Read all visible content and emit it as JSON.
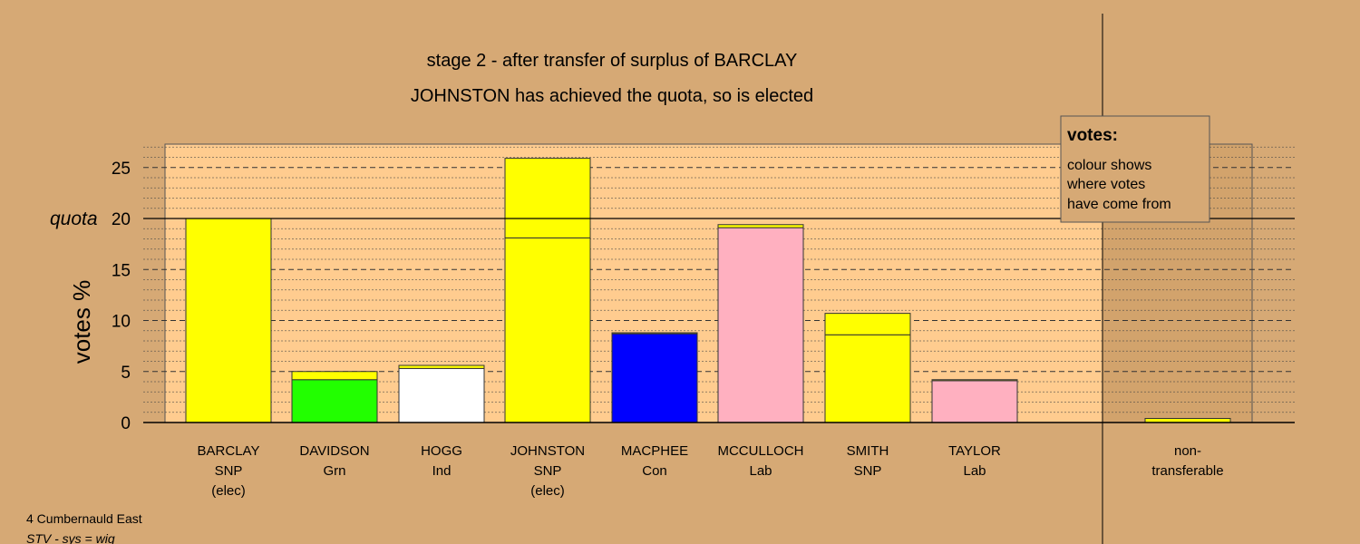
{
  "colors": {
    "page_background": "#d6a975",
    "panel_background": "#ffcc8f",
    "right_panel_background": "#d2a36c",
    "legend_background": "#d6a975",
    "SNP": "#ffff00",
    "Grn": "#22ff00",
    "Ind": "#ffffff",
    "Con": "#0000ff",
    "Lab": "#ffb0c0"
  },
  "chart_data": {
    "type": "bar",
    "stacked": true,
    "title": "stage 2 - after transfer of surplus of BARCLAY",
    "subtitle": "JOHNSTON has achieved the quota, so is elected",
    "ylabel": "votes %",
    "xlabel": "",
    "ylim": [
      0,
      27.3
    ],
    "yticks": [
      "0",
      "5",
      "10",
      "15",
      "20",
      "25"
    ],
    "quota": 20,
    "quota_label": "quota",
    "grid": true,
    "categories": [
      {
        "name": "BARCLAY",
        "party": "SNP",
        "note": "(elec)"
      },
      {
        "name": "DAVIDSON",
        "party": "Grn",
        "note": ""
      },
      {
        "name": "HOGG",
        "party": "Ind",
        "note": ""
      },
      {
        "name": "JOHNSTON",
        "party": "SNP",
        "note": "(elec)"
      },
      {
        "name": "MACPHEE",
        "party": "Con",
        "note": ""
      },
      {
        "name": "MCCULLOCH",
        "party": "Lab",
        "note": ""
      },
      {
        "name": "SMITH",
        "party": "SNP",
        "note": ""
      },
      {
        "name": "TAYLOR",
        "party": "Lab",
        "note": ""
      }
    ],
    "bars": [
      {
        "segments": [
          {
            "value": 20.0,
            "from": "SNP"
          }
        ]
      },
      {
        "segments": [
          {
            "value": 4.2,
            "from": "Grn"
          },
          {
            "value": 0.8,
            "from": "SNP"
          }
        ]
      },
      {
        "segments": [
          {
            "value": 5.3,
            "from": "Ind"
          },
          {
            "value": 0.3,
            "from": "SNP"
          }
        ]
      },
      {
        "segments": [
          {
            "value": 18.1,
            "from": "SNP"
          },
          {
            "value": 7.8,
            "from": "SNP"
          }
        ]
      },
      {
        "segments": [
          {
            "value": 8.7,
            "from": "Con"
          },
          {
            "value": 0.1,
            "from": "SNP"
          }
        ]
      },
      {
        "segments": [
          {
            "value": 19.1,
            "from": "Lab"
          },
          {
            "value": 0.3,
            "from": "SNP"
          }
        ]
      },
      {
        "segments": [
          {
            "value": 8.6,
            "from": "SNP"
          },
          {
            "value": 2.1,
            "from": "SNP"
          }
        ]
      },
      {
        "segments": [
          {
            "value": 4.1,
            "from": "Lab"
          },
          {
            "value": 0.1,
            "from": "SNP"
          }
        ]
      }
    ],
    "non_transferable": {
      "label_line1": "non-",
      "label_line2": "transferable",
      "value": 0.4,
      "from": "SNP"
    },
    "legend": {
      "title": "votes:",
      "lines": [
        "colour shows",
        "where votes",
        "have come from"
      ],
      "placement": "top-right"
    }
  },
  "footer": {
    "ward": "4 Cumbernauld East",
    "system": "STV - sys = wig"
  }
}
